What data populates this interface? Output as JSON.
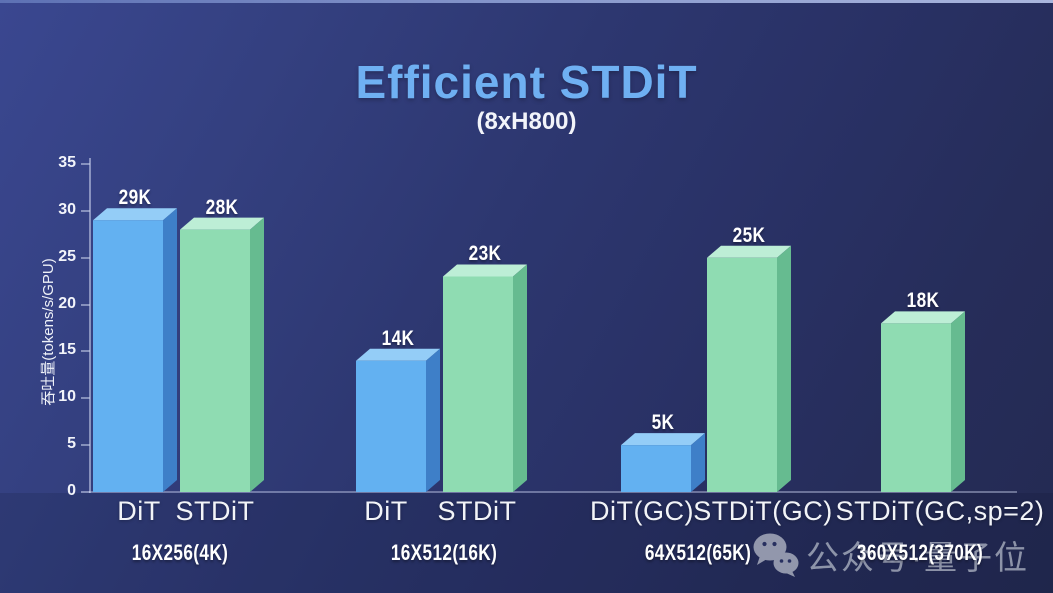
{
  "title": "Efficient STDiT",
  "subtitle": "(8xH800)",
  "watermark": {
    "icon": "wechat-icon",
    "label": "公众号·量子位"
  },
  "chart_data": {
    "type": "bar",
    "title": "Efficient STDiT",
    "subtitle": "(8xH800)",
    "xlabel": "",
    "ylabel": "吞吐量(tokens/s/GPU)",
    "ylim": [
      0,
      35
    ],
    "yticks": [
      0,
      5,
      10,
      15,
      20,
      25,
      30,
      35
    ],
    "grid": false,
    "legend": "none",
    "unit": "k tokens/s/GPU",
    "colors": {
      "dit_blue": {
        "front": "#63b1f1",
        "top": "#94cdf7",
        "side": "#3e7fc8"
      },
      "stdit_green": {
        "front": "#8fdcb2",
        "top": "#bdeed6",
        "side": "#66bb90"
      }
    },
    "groups": [
      {
        "label": "16X256(4K)",
        "bars": [
          {
            "name": "DiT",
            "value": 29,
            "value_label": "29K",
            "color": "dit_blue"
          },
          {
            "name": "STDiT",
            "value": 28,
            "value_label": "28K",
            "color": "stdit_green"
          }
        ]
      },
      {
        "label": "16X512(16K)",
        "bars": [
          {
            "name": "DiT",
            "value": 14,
            "value_label": "14K",
            "color": "dit_blue"
          },
          {
            "name": "STDiT",
            "value": 23,
            "value_label": "23K",
            "color": "stdit_green"
          }
        ]
      },
      {
        "label": "64X512(65K)",
        "bars": [
          {
            "name": "DiT(GC)",
            "value": 5,
            "value_label": "5K",
            "color": "dit_blue"
          },
          {
            "name": "STDiT(GC)",
            "value": 25,
            "value_label": "25K",
            "color": "stdit_green"
          }
        ]
      },
      {
        "label": "360X512(370K)",
        "bars": [
          {
            "name": "STDiT(GC,sp=2)",
            "value": 18,
            "value_label": "18K",
            "color": "stdit_green"
          }
        ]
      }
    ]
  }
}
